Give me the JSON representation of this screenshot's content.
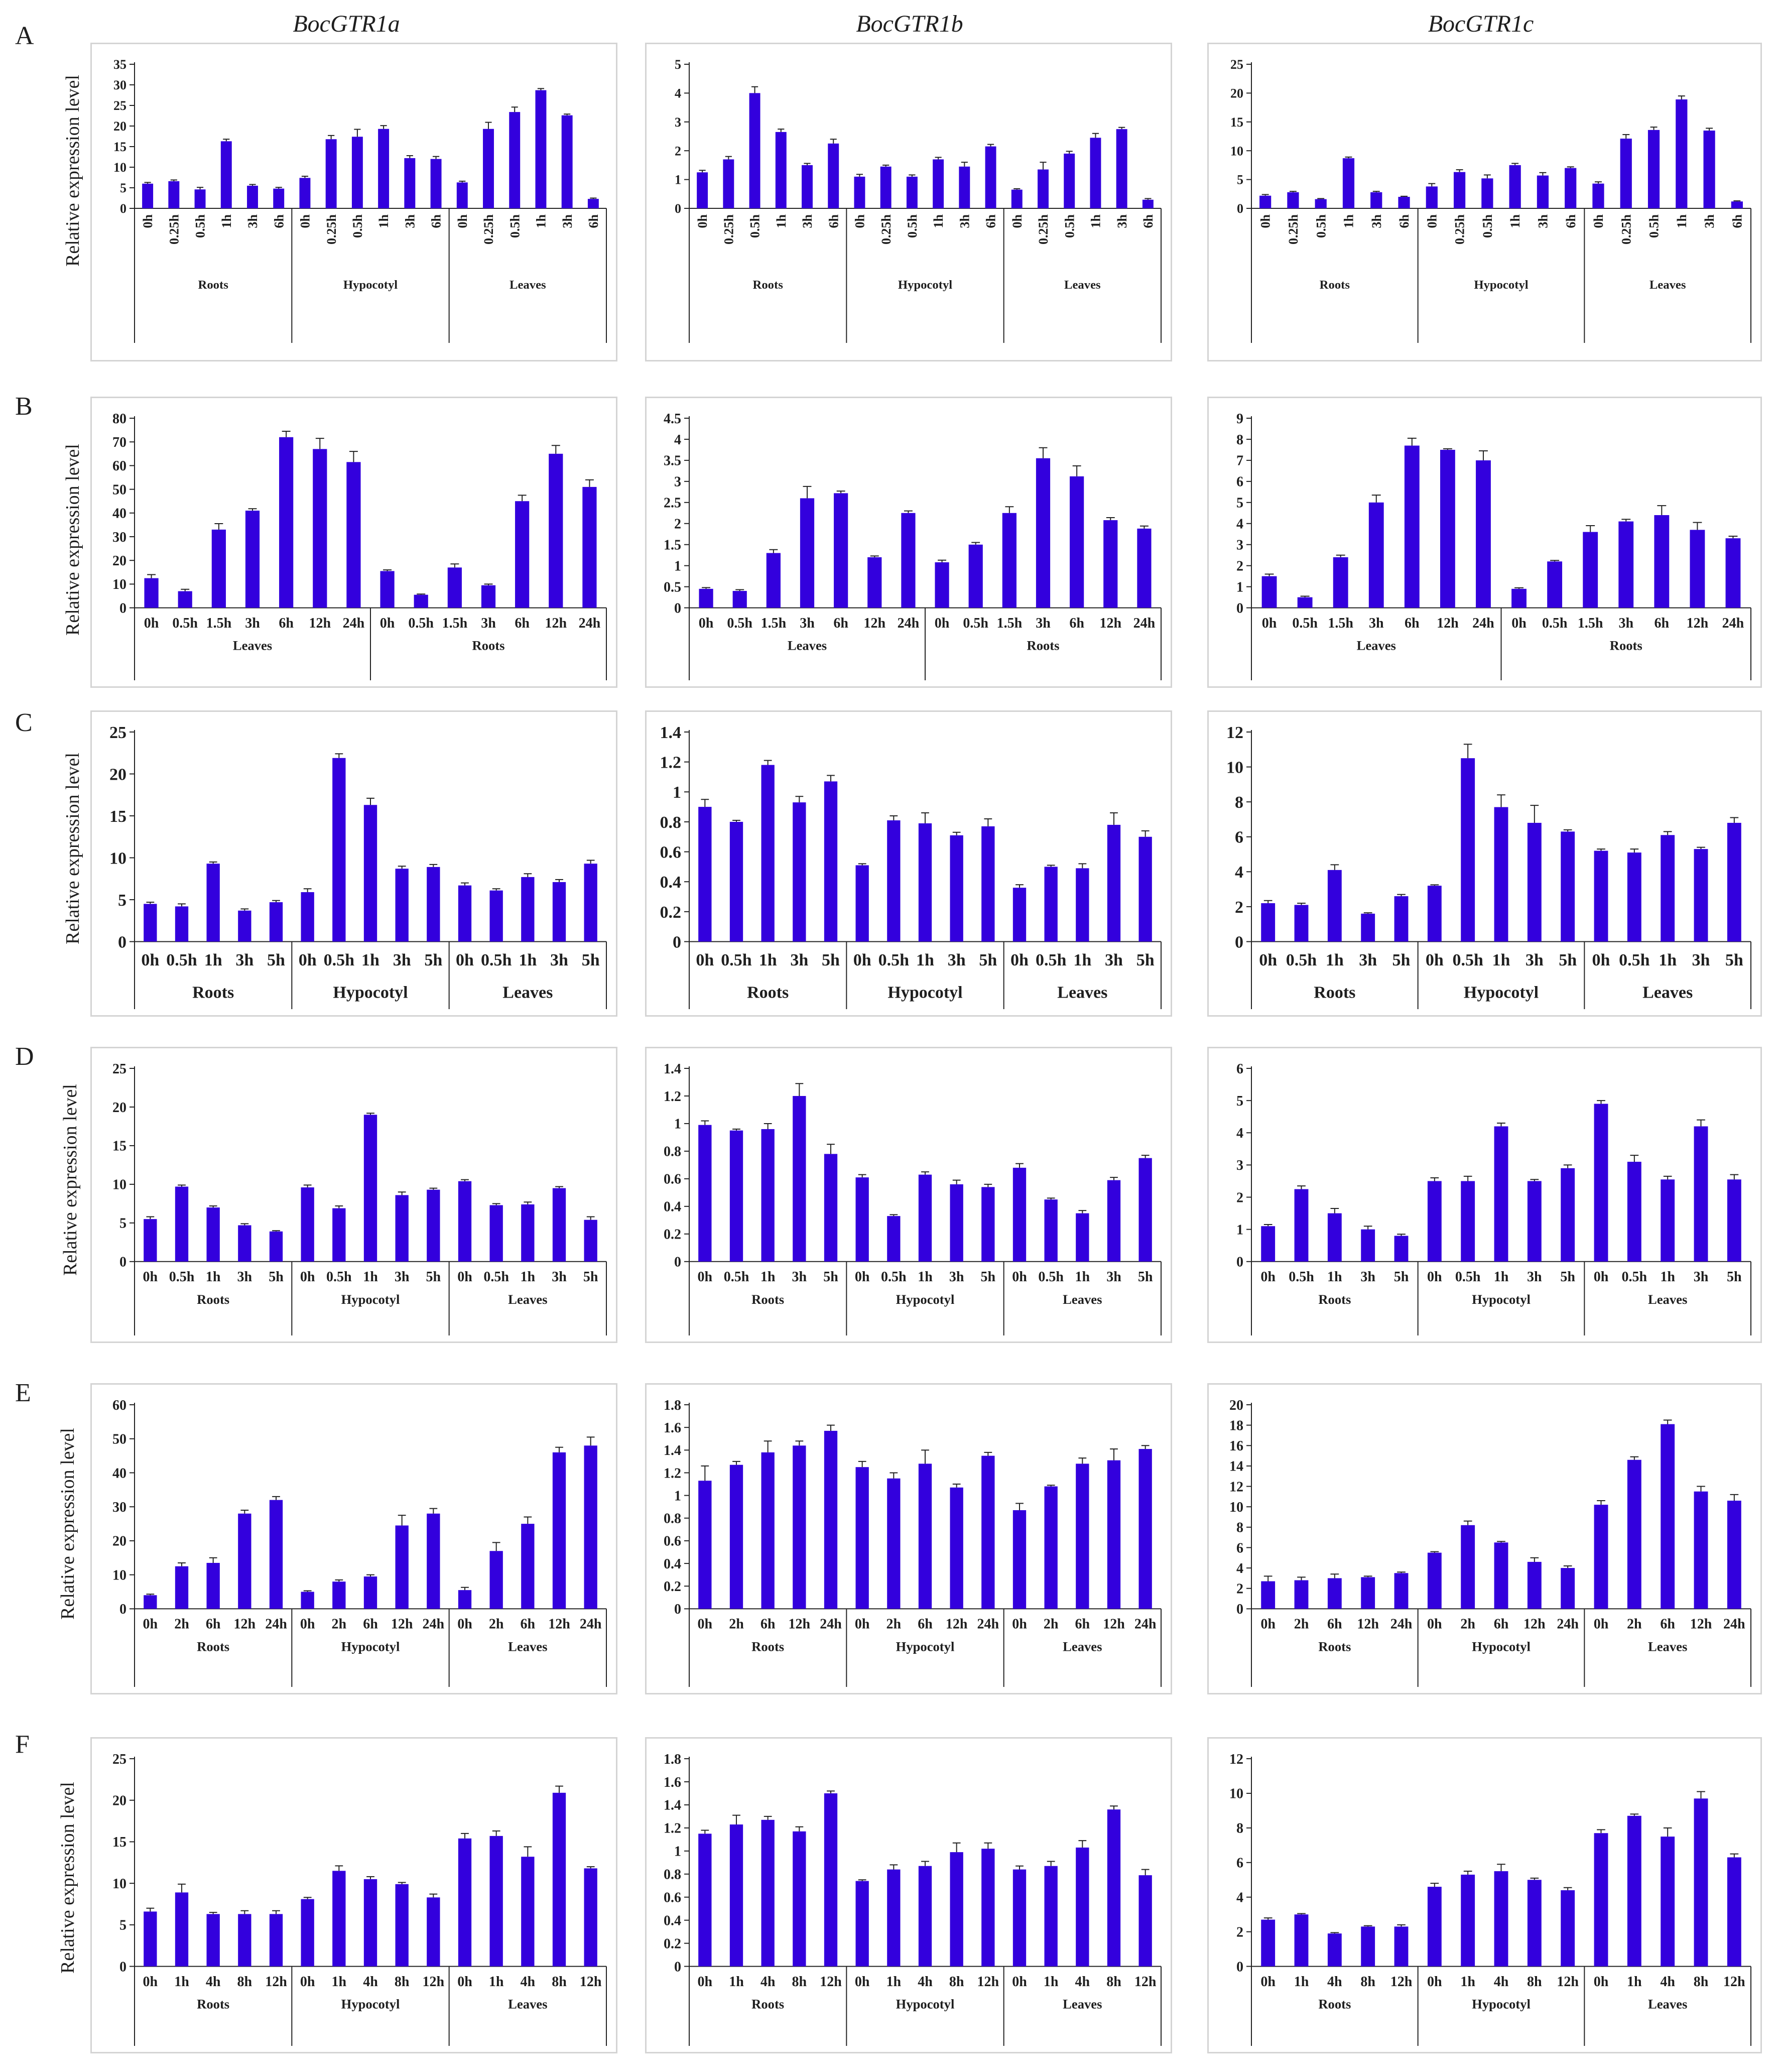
{
  "column_titles": [
    "BocGTR1a",
    "BocGTR1b",
    "BocGTR1c"
  ],
  "row_letters": [
    "A",
    "B",
    "C",
    "D",
    "E",
    "F"
  ],
  "ylabel": "Relative expression level",
  "colors": {
    "bar": "#3300dd",
    "axis": "#222222",
    "panel_border": "#d4d4d4"
  },
  "chart_data": [
    {
      "row": "A",
      "gene": "BocGTR1a",
      "type": "bar",
      "ylim": [
        0,
        35
      ],
      "yticks": [
        0,
        5,
        10,
        15,
        20,
        25,
        30,
        35
      ],
      "groups": [
        "Roots",
        "Hypocotyl",
        "Leaves"
      ],
      "categories": [
        "0h",
        "0.25h",
        "0.5h",
        "1h",
        "3h",
        "6h",
        "0h",
        "0.25h",
        "0.5h",
        "1h",
        "3h",
        "6h",
        "0h",
        "0.25h",
        "0.5h",
        "1h",
        "3h",
        "6h"
      ],
      "values": [
        6.0,
        6.6,
        4.6,
        16.3,
        5.5,
        4.8,
        7.4,
        16.8,
        17.4,
        19.3,
        12.2,
        12.0,
        6.3,
        19.3,
        23.4,
        28.7,
        22.6,
        2.3
      ],
      "errors": [
        0.3,
        0.3,
        0.5,
        0.5,
        0.3,
        0.3,
        0.4,
        0.9,
        1.8,
        0.8,
        0.6,
        0.6,
        0.3,
        1.6,
        1.2,
        0.4,
        0.3,
        0.2
      ]
    },
    {
      "row": "A",
      "gene": "BocGTR1b",
      "type": "bar",
      "ylim": [
        0,
        5
      ],
      "yticks": [
        0,
        1,
        2,
        3,
        4,
        5
      ],
      "groups": [
        "Roots",
        "Hypocotyl",
        "Leaves"
      ],
      "categories": [
        "0h",
        "0.25h",
        "0.5h",
        "1h",
        "3h",
        "6h",
        "0h",
        "0.25h",
        "0.5h",
        "1h",
        "3h",
        "6h",
        "0h",
        "0.25h",
        "0.5h",
        "1h",
        "3h",
        "6h"
      ],
      "values": [
        1.25,
        1.7,
        4.0,
        2.65,
        1.5,
        2.25,
        1.1,
        1.45,
        1.1,
        1.7,
        1.45,
        2.15,
        0.65,
        1.35,
        1.9,
        2.45,
        2.75,
        0.3
      ],
      "errors": [
        0.07,
        0.1,
        0.22,
        0.1,
        0.06,
        0.15,
        0.08,
        0.05,
        0.06,
        0.07,
        0.15,
        0.07,
        0.03,
        0.25,
        0.08,
        0.15,
        0.06,
        0.04
      ]
    },
    {
      "row": "A",
      "gene": "BocGTR1c",
      "type": "bar",
      "ylim": [
        0,
        25
      ],
      "yticks": [
        0,
        5,
        10,
        15,
        20,
        25
      ],
      "groups": [
        "Roots",
        "Hypocotyl",
        "Leaves"
      ],
      "categories": [
        "0h",
        "0.25h",
        "0.5h",
        "1h",
        "3h",
        "6h",
        "0h",
        "0.25h",
        "0.5h",
        "1h",
        "3h",
        "6h",
        "0h",
        "0.25h",
        "0.5h",
        "1h",
        "3h",
        "6h"
      ],
      "values": [
        2.2,
        2.8,
        1.6,
        8.7,
        2.8,
        2.0,
        3.8,
        6.3,
        5.2,
        7.5,
        5.7,
        7.0,
        4.3,
        12.1,
        13.6,
        18.9,
        13.5,
        1.2
      ],
      "errors": [
        0.2,
        0.15,
        0.1,
        0.2,
        0.15,
        0.1,
        0.5,
        0.4,
        0.6,
        0.3,
        0.5,
        0.2,
        0.3,
        0.7,
        0.5,
        0.6,
        0.4,
        0.1
      ]
    },
    {
      "row": "B",
      "gene": "BocGTR1a",
      "type": "bar",
      "ylim": [
        0,
        80
      ],
      "yticks": [
        0,
        10,
        20,
        30,
        40,
        50,
        60,
        70,
        80
      ],
      "groups": [
        "Leaves",
        "Roots"
      ],
      "categories": [
        "0h",
        "0.5h",
        "1.5h",
        "3h",
        "6h",
        "12h",
        "24h",
        "0h",
        "0.5h",
        "1.5h",
        "3h",
        "6h",
        "12h",
        "24h"
      ],
      "values": [
        12.5,
        7.0,
        33.0,
        41.0,
        72.0,
        67.0,
        61.5,
        15.5,
        5.5,
        17.0,
        9.5,
        45.0,
        65.0,
        51.0
      ],
      "errors": [
        1.5,
        0.8,
        2.5,
        0.8,
        2.5,
        4.5,
        4.5,
        0.5,
        0.3,
        1.5,
        0.5,
        2.5,
        3.5,
        3.0
      ]
    },
    {
      "row": "B",
      "gene": "BocGTR1b",
      "type": "bar",
      "ylim": [
        0,
        4.5
      ],
      "yticks": [
        0,
        0.5,
        1,
        1.5,
        2,
        2.5,
        3,
        3.5,
        4,
        4.5
      ],
      "groups": [
        "Leaves",
        "Roots"
      ],
      "categories": [
        "0h",
        "0.5h",
        "1.5h",
        "3h",
        "6h",
        "12h",
        "24h",
        "0h",
        "0.5h",
        "1.5h",
        "3h",
        "6h",
        "12h",
        "24h"
      ],
      "values": [
        0.45,
        0.4,
        1.3,
        2.6,
        2.72,
        1.2,
        2.25,
        1.08,
        1.5,
        2.25,
        3.55,
        3.12,
        2.08,
        1.88
      ],
      "errors": [
        0.03,
        0.03,
        0.08,
        0.28,
        0.05,
        0.03,
        0.05,
        0.05,
        0.05,
        0.15,
        0.25,
        0.25,
        0.06,
        0.06
      ]
    },
    {
      "row": "B",
      "gene": "BocGTR1c",
      "type": "bar",
      "ylim": [
        0,
        9
      ],
      "yticks": [
        0,
        1,
        2,
        3,
        4,
        5,
        6,
        7,
        8,
        9
      ],
      "groups": [
        "Leaves",
        "Roots"
      ],
      "categories": [
        "0h",
        "0.5h",
        "1.5h",
        "3h",
        "6h",
        "12h",
        "24h",
        "0h",
        "0.5h",
        "1.5h",
        "3h",
        "6h",
        "12h",
        "24h"
      ],
      "values": [
        1.5,
        0.5,
        2.4,
        5.0,
        7.7,
        7.5,
        7.0,
        0.9,
        2.2,
        3.6,
        4.1,
        4.4,
        3.7,
        3.3
      ],
      "errors": [
        0.1,
        0.05,
        0.1,
        0.35,
        0.35,
        0.05,
        0.45,
        0.05,
        0.05,
        0.3,
        0.1,
        0.45,
        0.35,
        0.1
      ]
    },
    {
      "row": "C",
      "gene": "BocGTR1a",
      "type": "bar",
      "ylim": [
        0,
        25
      ],
      "yticks": [
        0,
        5,
        10,
        15,
        20,
        25
      ],
      "groups": [
        "Roots",
        "Hypocotyl",
        "Leaves"
      ],
      "categories": [
        "0h",
        "0.5h",
        "1h",
        "3h",
        "5h",
        "0h",
        "0.5h",
        "1h",
        "3h",
        "5h",
        "0h",
        "0.5h",
        "1h",
        "3h",
        "5h"
      ],
      "values": [
        4.5,
        4.2,
        9.3,
        3.7,
        4.7,
        5.9,
        21.9,
        16.3,
        8.7,
        8.9,
        6.7,
        6.1,
        7.7,
        7.1,
        9.3
      ],
      "errors": [
        0.2,
        0.3,
        0.2,
        0.2,
        0.2,
        0.4,
        0.5,
        0.8,
        0.3,
        0.3,
        0.3,
        0.2,
        0.4,
        0.3,
        0.4
      ]
    },
    {
      "row": "C",
      "gene": "BocGTR1b",
      "type": "bar",
      "ylim": [
        0,
        1.4
      ],
      "yticks": [
        0,
        0.2,
        0.4,
        0.6,
        0.8,
        1,
        1.2,
        1.4
      ],
      "groups": [
        "Roots",
        "Hypocotyl",
        "Leaves"
      ],
      "categories": [
        "0h",
        "0.5h",
        "1h",
        "3h",
        "5h",
        "0h",
        "0.5h",
        "1h",
        "3h",
        "5h",
        "0h",
        "0.5h",
        "1h",
        "3h",
        "5h"
      ],
      "values": [
        0.9,
        0.8,
        1.18,
        0.93,
        1.07,
        0.51,
        0.81,
        0.79,
        0.71,
        0.77,
        0.36,
        0.5,
        0.49,
        0.78,
        0.7
      ],
      "errors": [
        0.05,
        0.01,
        0.03,
        0.04,
        0.04,
        0.01,
        0.03,
        0.07,
        0.02,
        0.05,
        0.02,
        0.01,
        0.03,
        0.08,
        0.04
      ]
    },
    {
      "row": "C",
      "gene": "BocGTR1c",
      "type": "bar",
      "ylim": [
        0,
        12
      ],
      "yticks": [
        0,
        2,
        4,
        6,
        8,
        10,
        12
      ],
      "groups": [
        "Roots",
        "Hypocotyl",
        "Leaves"
      ],
      "categories": [
        "0h",
        "0.5h",
        "1h",
        "3h",
        "5h",
        "0h",
        "0.5h",
        "1h",
        "3h",
        "5h",
        "0h",
        "0.5h",
        "1h",
        "3h",
        "5h"
      ],
      "values": [
        2.2,
        2.1,
        4.1,
        1.6,
        2.6,
        3.2,
        10.5,
        7.7,
        6.8,
        6.3,
        5.2,
        5.1,
        6.1,
        5.3,
        6.8
      ],
      "errors": [
        0.15,
        0.1,
        0.3,
        0.05,
        0.1,
        0.05,
        0.8,
        0.7,
        1.0,
        0.1,
        0.1,
        0.2,
        0.2,
        0.1,
        0.3
      ]
    },
    {
      "row": "D",
      "gene": "BocGTR1a",
      "type": "bar",
      "ylim": [
        0,
        25
      ],
      "yticks": [
        0,
        5,
        10,
        15,
        20,
        25
      ],
      "groups": [
        "Roots",
        "Hypocotyl",
        "Leaves"
      ],
      "categories": [
        "0h",
        "0.5h",
        "1h",
        "3h",
        "5h",
        "0h",
        "0.5h",
        "1h",
        "3h",
        "5h",
        "0h",
        "0.5h",
        "1h",
        "3h",
        "5h"
      ],
      "values": [
        5.5,
        9.7,
        7.0,
        4.7,
        3.9,
        9.6,
        6.9,
        19.0,
        8.6,
        9.3,
        10.4,
        7.3,
        7.4,
        9.5,
        5.4
      ],
      "errors": [
        0.3,
        0.2,
        0.2,
        0.2,
        0.1,
        0.3,
        0.3,
        0.2,
        0.4,
        0.2,
        0.2,
        0.2,
        0.3,
        0.2,
        0.4
      ]
    },
    {
      "row": "D",
      "gene": "BocGTR1b",
      "type": "bar",
      "ylim": [
        0,
        1.4
      ],
      "yticks": [
        0,
        0.2,
        0.4,
        0.6,
        0.8,
        1,
        1.2,
        1.4
      ],
      "groups": [
        "Roots",
        "Hypocotyl",
        "Leaves"
      ],
      "categories": [
        "0h",
        "0.5h",
        "1h",
        "3h",
        "5h",
        "0h",
        "0.5h",
        "1h",
        "3h",
        "5h",
        "0h",
        "0.5h",
        "1h",
        "3h",
        "5h"
      ],
      "values": [
        0.99,
        0.95,
        0.96,
        1.2,
        0.78,
        0.61,
        0.33,
        0.63,
        0.56,
        0.54,
        0.68,
        0.45,
        0.35,
        0.59,
        0.75
      ],
      "errors": [
        0.03,
        0.01,
        0.04,
        0.09,
        0.07,
        0.02,
        0.01,
        0.02,
        0.03,
        0.02,
        0.03,
        0.01,
        0.02,
        0.02,
        0.02
      ]
    },
    {
      "row": "D",
      "gene": "BocGTR1c",
      "type": "bar",
      "ylim": [
        0,
        6
      ],
      "yticks": [
        0,
        1,
        2,
        3,
        4,
        5,
        6
      ],
      "groups": [
        "Roots",
        "Hypocotyl",
        "Leaves"
      ],
      "categories": [
        "0h",
        "0.5h",
        "1h",
        "3h",
        "5h",
        "0h",
        "0.5h",
        "1h",
        "3h",
        "5h",
        "0h",
        "0.5h",
        "1h",
        "3h",
        "5h"
      ],
      "values": [
        1.1,
        2.25,
        1.5,
        1.0,
        0.8,
        2.5,
        2.5,
        4.2,
        2.5,
        2.9,
        4.9,
        3.1,
        2.55,
        4.2,
        2.55
      ],
      "errors": [
        0.05,
        0.1,
        0.15,
        0.1,
        0.05,
        0.1,
        0.15,
        0.1,
        0.05,
        0.1,
        0.1,
        0.2,
        0.1,
        0.2,
        0.15
      ]
    },
    {
      "row": "E",
      "gene": "BocGTR1a",
      "type": "bar",
      "ylim": [
        0,
        60
      ],
      "yticks": [
        0,
        10,
        20,
        30,
        40,
        50,
        60
      ],
      "groups": [
        "Roots",
        "Hypocotyl",
        "Leaves"
      ],
      "categories": [
        "0h",
        "2h",
        "6h",
        "12h",
        "24h",
        "0h",
        "2h",
        "6h",
        "12h",
        "24h",
        "0h",
        "2h",
        "6h",
        "12h",
        "24h"
      ],
      "values": [
        4.0,
        12.5,
        13.5,
        28.0,
        32.0,
        5.0,
        8.0,
        9.5,
        24.5,
        28.0,
        5.5,
        17.0,
        25.0,
        46.0,
        48.0
      ],
      "errors": [
        0.3,
        1.0,
        1.5,
        1.0,
        1.0,
        0.3,
        0.5,
        0.5,
        3.0,
        1.5,
        0.8,
        2.5,
        2.0,
        1.5,
        2.5
      ]
    },
    {
      "row": "E",
      "gene": "BocGTR1b",
      "type": "bar",
      "ylim": [
        0,
        1.8
      ],
      "yticks": [
        0,
        0.2,
        0.4,
        0.6,
        0.8,
        1,
        1.2,
        1.4,
        1.6,
        1.8
      ],
      "groups": [
        "Roots",
        "Hypocotyl",
        "Leaves"
      ],
      "categories": [
        "0h",
        "2h",
        "6h",
        "12h",
        "24h",
        "0h",
        "2h",
        "6h",
        "12h",
        "24h",
        "0h",
        "2h",
        "6h",
        "12h",
        "24h"
      ],
      "values": [
        1.13,
        1.27,
        1.38,
        1.44,
        1.57,
        1.25,
        1.15,
        1.28,
        1.07,
        1.35,
        0.87,
        1.08,
        1.28,
        1.31,
        1.41
      ],
      "errors": [
        0.13,
        0.03,
        0.1,
        0.04,
        0.05,
        0.05,
        0.05,
        0.12,
        0.03,
        0.03,
        0.06,
        0.01,
        0.05,
        0.1,
        0.03
      ]
    },
    {
      "row": "E",
      "gene": "BocGTR1c",
      "type": "bar",
      "ylim": [
        0,
        20
      ],
      "yticks": [
        0,
        2,
        4,
        6,
        8,
        10,
        12,
        14,
        16,
        18,
        20
      ],
      "groups": [
        "Roots",
        "Hypocotyl",
        "Leaves"
      ],
      "categories": [
        "0h",
        "2h",
        "6h",
        "12h",
        "24h",
        "0h",
        "2h",
        "6h",
        "12h",
        "24h",
        "0h",
        "2h",
        "6h",
        "12h",
        "24h"
      ],
      "values": [
        2.7,
        2.8,
        3.0,
        3.1,
        3.5,
        5.5,
        8.2,
        6.5,
        4.6,
        4.0,
        10.2,
        14.6,
        18.1,
        11.5,
        10.6
      ],
      "errors": [
        0.5,
        0.3,
        0.4,
        0.1,
        0.1,
        0.1,
        0.4,
        0.1,
        0.4,
        0.2,
        0.4,
        0.3,
        0.4,
        0.5,
        0.6
      ]
    },
    {
      "row": "F",
      "gene": "BocGTR1a",
      "type": "bar",
      "ylim": [
        0,
        25
      ],
      "yticks": [
        0,
        5,
        10,
        15,
        20,
        25
      ],
      "groups": [
        "Roots",
        "Hypocotyl",
        "Leaves"
      ],
      "categories": [
        "0h",
        "1h",
        "4h",
        "8h",
        "12h",
        "0h",
        "1h",
        "4h",
        "8h",
        "12h",
        "0h",
        "1h",
        "4h",
        "8h",
        "12h"
      ],
      "values": [
        6.6,
        8.9,
        6.3,
        6.3,
        6.3,
        8.1,
        11.5,
        10.5,
        9.9,
        8.3,
        15.4,
        15.7,
        13.2,
        20.9,
        11.8
      ],
      "errors": [
        0.4,
        1.0,
        0.2,
        0.4,
        0.4,
        0.2,
        0.6,
        0.3,
        0.2,
        0.4,
        0.6,
        0.6,
        1.2,
        0.8,
        0.2
      ]
    },
    {
      "row": "F",
      "gene": "BocGTR1b",
      "type": "bar",
      "ylim": [
        0,
        1.8
      ],
      "yticks": [
        0,
        0.2,
        0.4,
        0.6,
        0.8,
        1,
        1.2,
        1.4,
        1.6,
        1.8
      ],
      "groups": [
        "Roots",
        "Hypocotyl",
        "Leaves"
      ],
      "categories": [
        "0h",
        "1h",
        "4h",
        "8h",
        "12h",
        "0h",
        "1h",
        "4h",
        "8h",
        "12h",
        "0h",
        "1h",
        "4h",
        "8h",
        "12h"
      ],
      "values": [
        1.15,
        1.23,
        1.27,
        1.17,
        1.5,
        0.74,
        0.84,
        0.87,
        0.99,
        1.02,
        0.84,
        0.87,
        1.03,
        1.36,
        0.79
      ],
      "errors": [
        0.03,
        0.08,
        0.03,
        0.04,
        0.02,
        0.01,
        0.04,
        0.04,
        0.08,
        0.05,
        0.03,
        0.04,
        0.06,
        0.03,
        0.05
      ]
    },
    {
      "row": "F",
      "gene": "BocGTR1c",
      "type": "bar",
      "ylim": [
        0,
        12
      ],
      "yticks": [
        0,
        2,
        4,
        6,
        8,
        10,
        12
      ],
      "groups": [
        "Roots",
        "Hypocotyl",
        "Leaves"
      ],
      "categories": [
        "0h",
        "1h",
        "4h",
        "8h",
        "12h",
        "0h",
        "1h",
        "4h",
        "8h",
        "12h",
        "0h",
        "1h",
        "4h",
        "8h",
        "12h"
      ],
      "values": [
        2.7,
        3.0,
        1.9,
        2.3,
        2.3,
        4.6,
        5.3,
        5.5,
        5.0,
        4.4,
        7.7,
        8.7,
        7.5,
        9.7,
        6.3
      ],
      "errors": [
        0.1,
        0.05,
        0.05,
        0.05,
        0.1,
        0.2,
        0.2,
        0.4,
        0.1,
        0.15,
        0.2,
        0.1,
        0.5,
        0.4,
        0.2
      ]
    }
  ]
}
